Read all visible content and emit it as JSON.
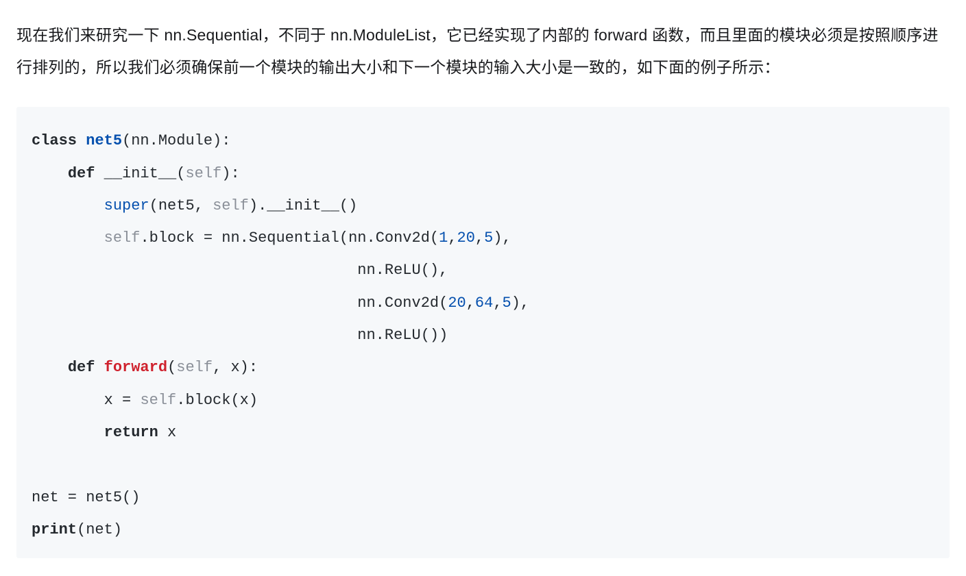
{
  "paragraph": "现在我们来研究一下 nn.Sequential，不同于 nn.ModuleList，它已经实现了内部的 forward 函数，而且里面的模块必须是按照顺序进行排列的，所以我们必须确保前一个模块的输出大小和下一个模块的输入大小是一致的，如下面的例子所示：",
  "code": {
    "background_color": "#f6f8fa",
    "font_family": "Consolas",
    "font_size_pt": 16,
    "line_height": 2.15,
    "colors": {
      "keyword_bold": "#24292e",
      "defname_blue_bold": "#0550ae",
      "funcname_red_bold": "#cf222e",
      "builtin_blue": "#0550ae",
      "self_grey": "#8a8f98",
      "number_blue": "#0550ae",
      "plain": "#24292e"
    },
    "lines": [
      [
        {
          "t": "class ",
          "c": "kw"
        },
        {
          "t": "net5",
          "c": "defn"
        },
        {
          "t": "(nn.Module):",
          "c": "plain"
        }
      ],
      [
        {
          "t": "    ",
          "c": "plain"
        },
        {
          "t": "def",
          "c": "kw"
        },
        {
          "t": " __init__(",
          "c": "plain"
        },
        {
          "t": "self",
          "c": "self"
        },
        {
          "t": "):",
          "c": "plain"
        }
      ],
      [
        {
          "t": "        ",
          "c": "plain"
        },
        {
          "t": "super",
          "c": "builtin"
        },
        {
          "t": "(net5, ",
          "c": "plain"
        },
        {
          "t": "self",
          "c": "self"
        },
        {
          "t": ").__init__()",
          "c": "plain"
        }
      ],
      [
        {
          "t": "        ",
          "c": "plain"
        },
        {
          "t": "self",
          "c": "self"
        },
        {
          "t": ".block = nn.Sequential(nn.Conv2d(",
          "c": "plain"
        },
        {
          "t": "1",
          "c": "num"
        },
        {
          "t": ",",
          "c": "plain"
        },
        {
          "t": "20",
          "c": "num"
        },
        {
          "t": ",",
          "c": "plain"
        },
        {
          "t": "5",
          "c": "num"
        },
        {
          "t": "),",
          "c": "plain"
        }
      ],
      [
        {
          "t": "                                    nn.ReLU(),",
          "c": "plain"
        }
      ],
      [
        {
          "t": "                                    nn.Conv2d(",
          "c": "plain"
        },
        {
          "t": "20",
          "c": "num"
        },
        {
          "t": ",",
          "c": "plain"
        },
        {
          "t": "64",
          "c": "num"
        },
        {
          "t": ",",
          "c": "plain"
        },
        {
          "t": "5",
          "c": "num"
        },
        {
          "t": "),",
          "c": "plain"
        }
      ],
      [
        {
          "t": "                                    nn.ReLU())",
          "c": "plain"
        }
      ],
      [
        {
          "t": "    ",
          "c": "plain"
        },
        {
          "t": "def",
          "c": "kw"
        },
        {
          "t": " ",
          "c": "plain"
        },
        {
          "t": "forward",
          "c": "func"
        },
        {
          "t": "(",
          "c": "plain"
        },
        {
          "t": "self",
          "c": "self"
        },
        {
          "t": ", x):",
          "c": "plain"
        }
      ],
      [
        {
          "t": "        x = ",
          "c": "plain"
        },
        {
          "t": "self",
          "c": "self"
        },
        {
          "t": ".block(x)",
          "c": "plain"
        }
      ],
      [
        {
          "t": "        ",
          "c": "plain"
        },
        {
          "t": "return",
          "c": "kw"
        },
        {
          "t": " x",
          "c": "plain"
        }
      ],
      [
        {
          "t": "",
          "c": "plain"
        }
      ],
      [
        {
          "t": "net = net5()",
          "c": "plain"
        }
      ],
      [
        {
          "t": "print",
          "c": "kw"
        },
        {
          "t": "(net)",
          "c": "plain"
        }
      ]
    ]
  }
}
